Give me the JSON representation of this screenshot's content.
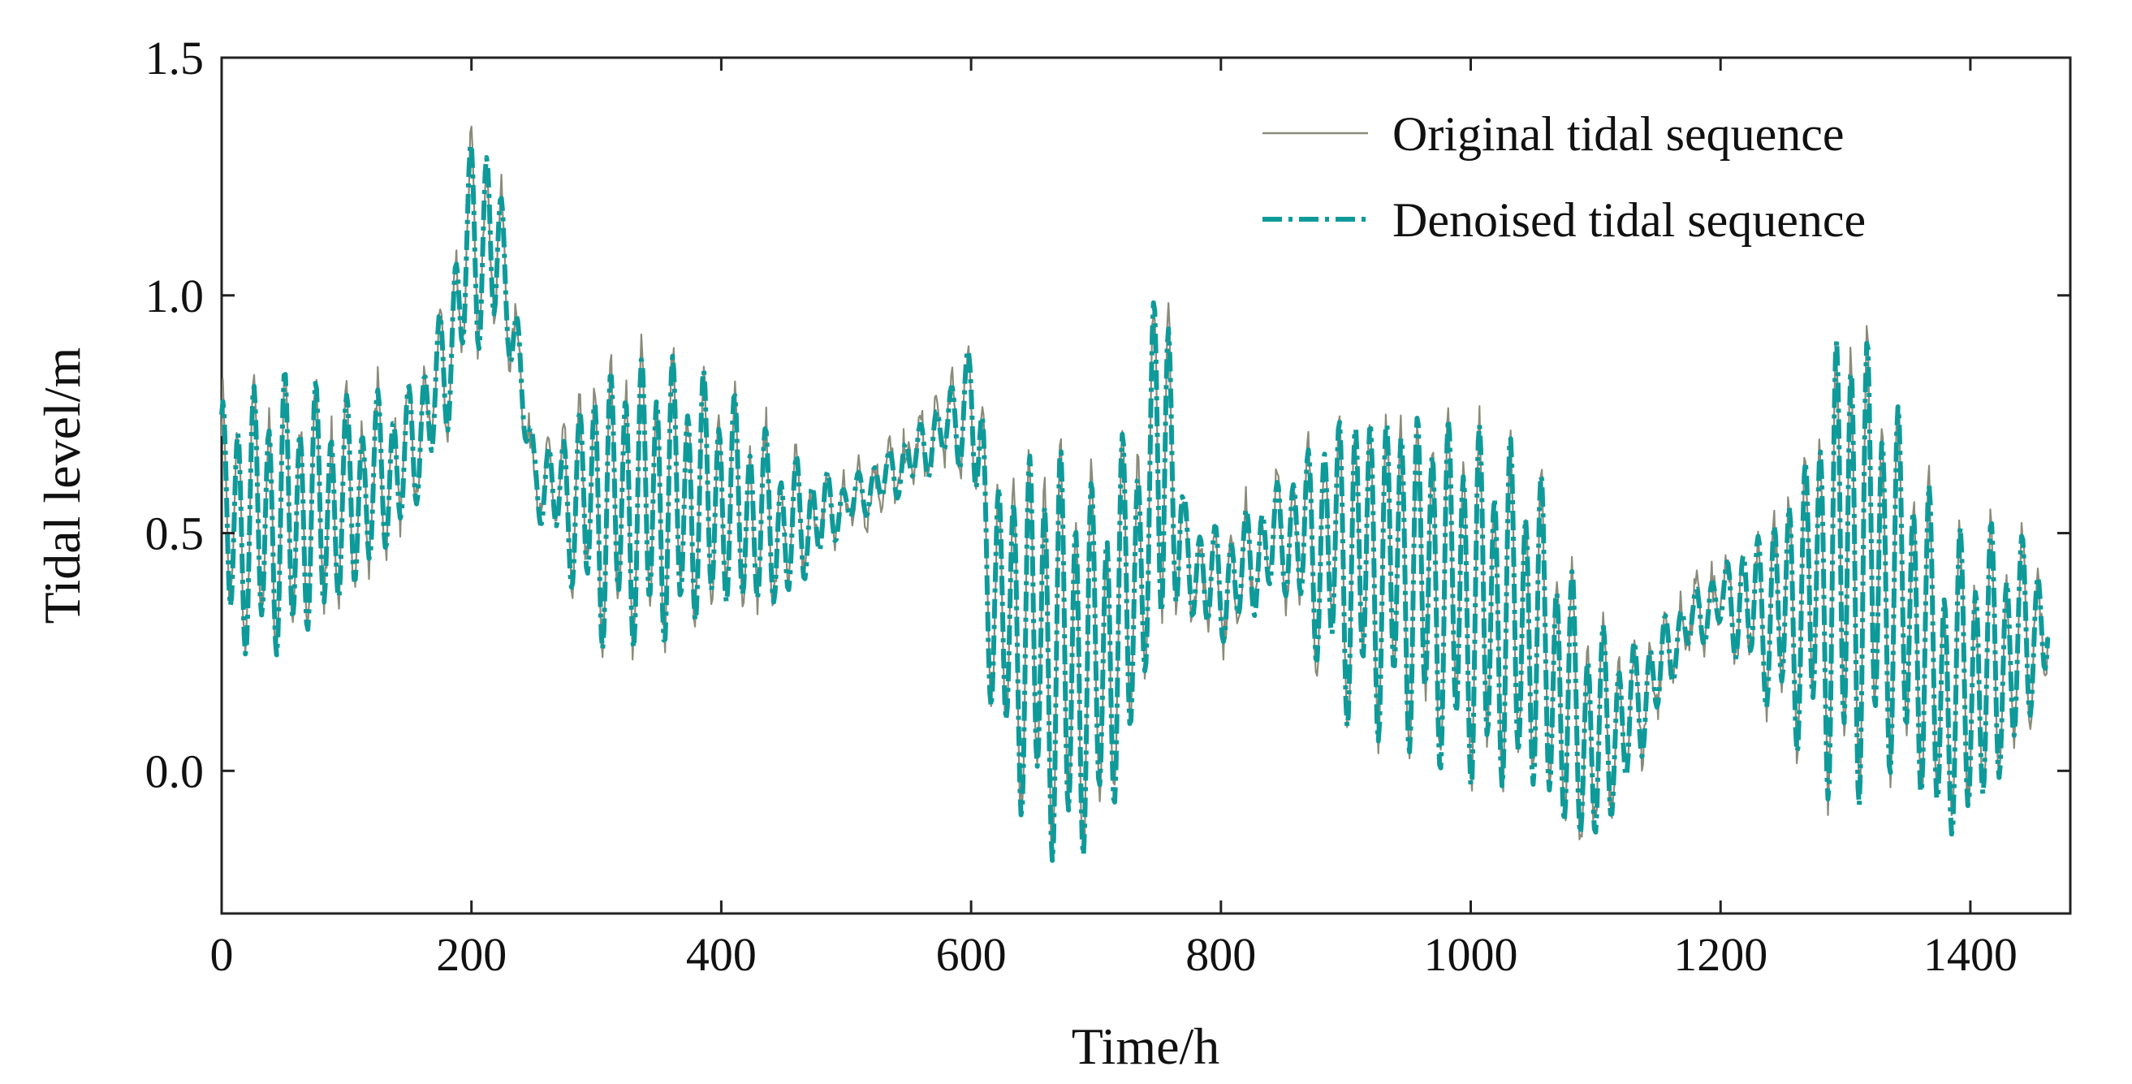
{
  "chart_data": {
    "type": "line",
    "title": "",
    "xlabel": "Time/h",
    "ylabel": "Tidal level/m",
    "xlim": [
      0,
      1480
    ],
    "ylim": [
      -0.3,
      1.5
    ],
    "xticks": [
      0,
      200,
      400,
      600,
      800,
      1000,
      1200,
      1400
    ],
    "yticks": [
      0.0,
      0.5,
      1.0,
      1.5
    ],
    "ytick_labels": [
      "0.0",
      "0.5",
      "1.0",
      "1.5"
    ],
    "grid": false,
    "legend_position": "top-right",
    "sampling_interval_h": 1,
    "envelope": {
      "x": [
        0,
        50,
        100,
        150,
        180,
        200,
        215,
        230,
        250,
        270,
        300,
        350,
        400,
        450,
        500,
        550,
        580,
        600,
        620,
        650,
        680,
        700,
        720,
        740,
        755,
        770,
        800,
        850,
        900,
        950,
        1000,
        1050,
        1080,
        1100,
        1130,
        1170,
        1200,
        1250,
        1280,
        1300,
        1320,
        1350,
        1380,
        1420,
        1460
      ],
      "mean": [
        0.52,
        0.53,
        0.56,
        0.66,
        0.85,
        1.12,
        1.12,
        1.0,
        0.62,
        0.58,
        0.56,
        0.57,
        0.57,
        0.5,
        0.56,
        0.65,
        0.72,
        0.78,
        0.32,
        0.28,
        0.22,
        0.22,
        0.3,
        0.48,
        0.75,
        0.45,
        0.38,
        0.5,
        0.45,
        0.42,
        0.35,
        0.3,
        0.12,
        0.06,
        0.12,
        0.3,
        0.36,
        0.33,
        0.38,
        0.46,
        0.44,
        0.35,
        0.15,
        0.22,
        0.32
      ],
      "amplitude": [
        0.22,
        0.25,
        0.18,
        0.12,
        0.12,
        0.18,
        0.2,
        0.1,
        0.06,
        0.1,
        0.24,
        0.26,
        0.2,
        0.14,
        0.04,
        0.05,
        0.06,
        0.12,
        0.25,
        0.34,
        0.38,
        0.3,
        0.32,
        0.25,
        0.4,
        0.1,
        0.1,
        0.1,
        0.28,
        0.3,
        0.32,
        0.3,
        0.24,
        0.2,
        0.12,
        0.05,
        0.06,
        0.2,
        0.32,
        0.48,
        0.38,
        0.3,
        0.28,
        0.24,
        0.12
      ]
    },
    "series": [
      {
        "name": "Original tidal sequence",
        "color": "#8a8c7a",
        "style": "solid"
      },
      {
        "name": "Denoised tidal sequence",
        "color": "#0f9a9a",
        "style": "dash-dot"
      }
    ]
  }
}
